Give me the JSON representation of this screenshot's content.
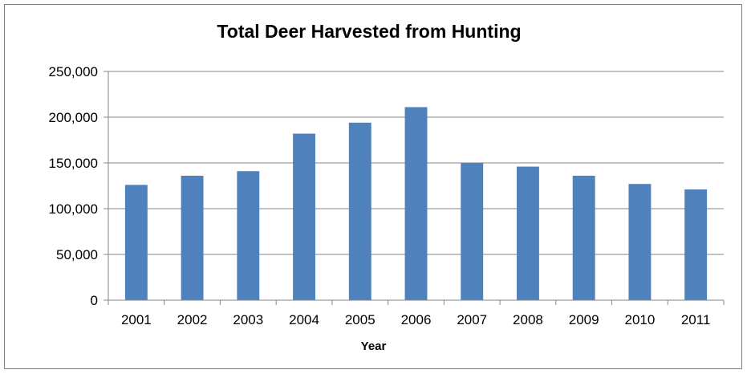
{
  "chart_data": {
    "type": "bar",
    "title": "Total Deer Harvested from Hunting",
    "xlabel": "Year",
    "ylabel": "",
    "categories": [
      "2001",
      "2002",
      "2003",
      "2004",
      "2005",
      "2006",
      "2007",
      "2008",
      "2009",
      "2010",
      "2011"
    ],
    "values": [
      126000,
      136000,
      141000,
      182000,
      194000,
      211000,
      150000,
      146000,
      136000,
      127000,
      121000
    ],
    "ylim": [
      0,
      250000
    ],
    "yticks": [
      0,
      50000,
      100000,
      150000,
      200000,
      250000
    ],
    "ytick_labels": [
      "0",
      "50,000",
      "100,000",
      "150,000",
      "200,000",
      "250,000"
    ],
    "grid": true,
    "legend": "none",
    "bar_color": "#4f81bd"
  }
}
